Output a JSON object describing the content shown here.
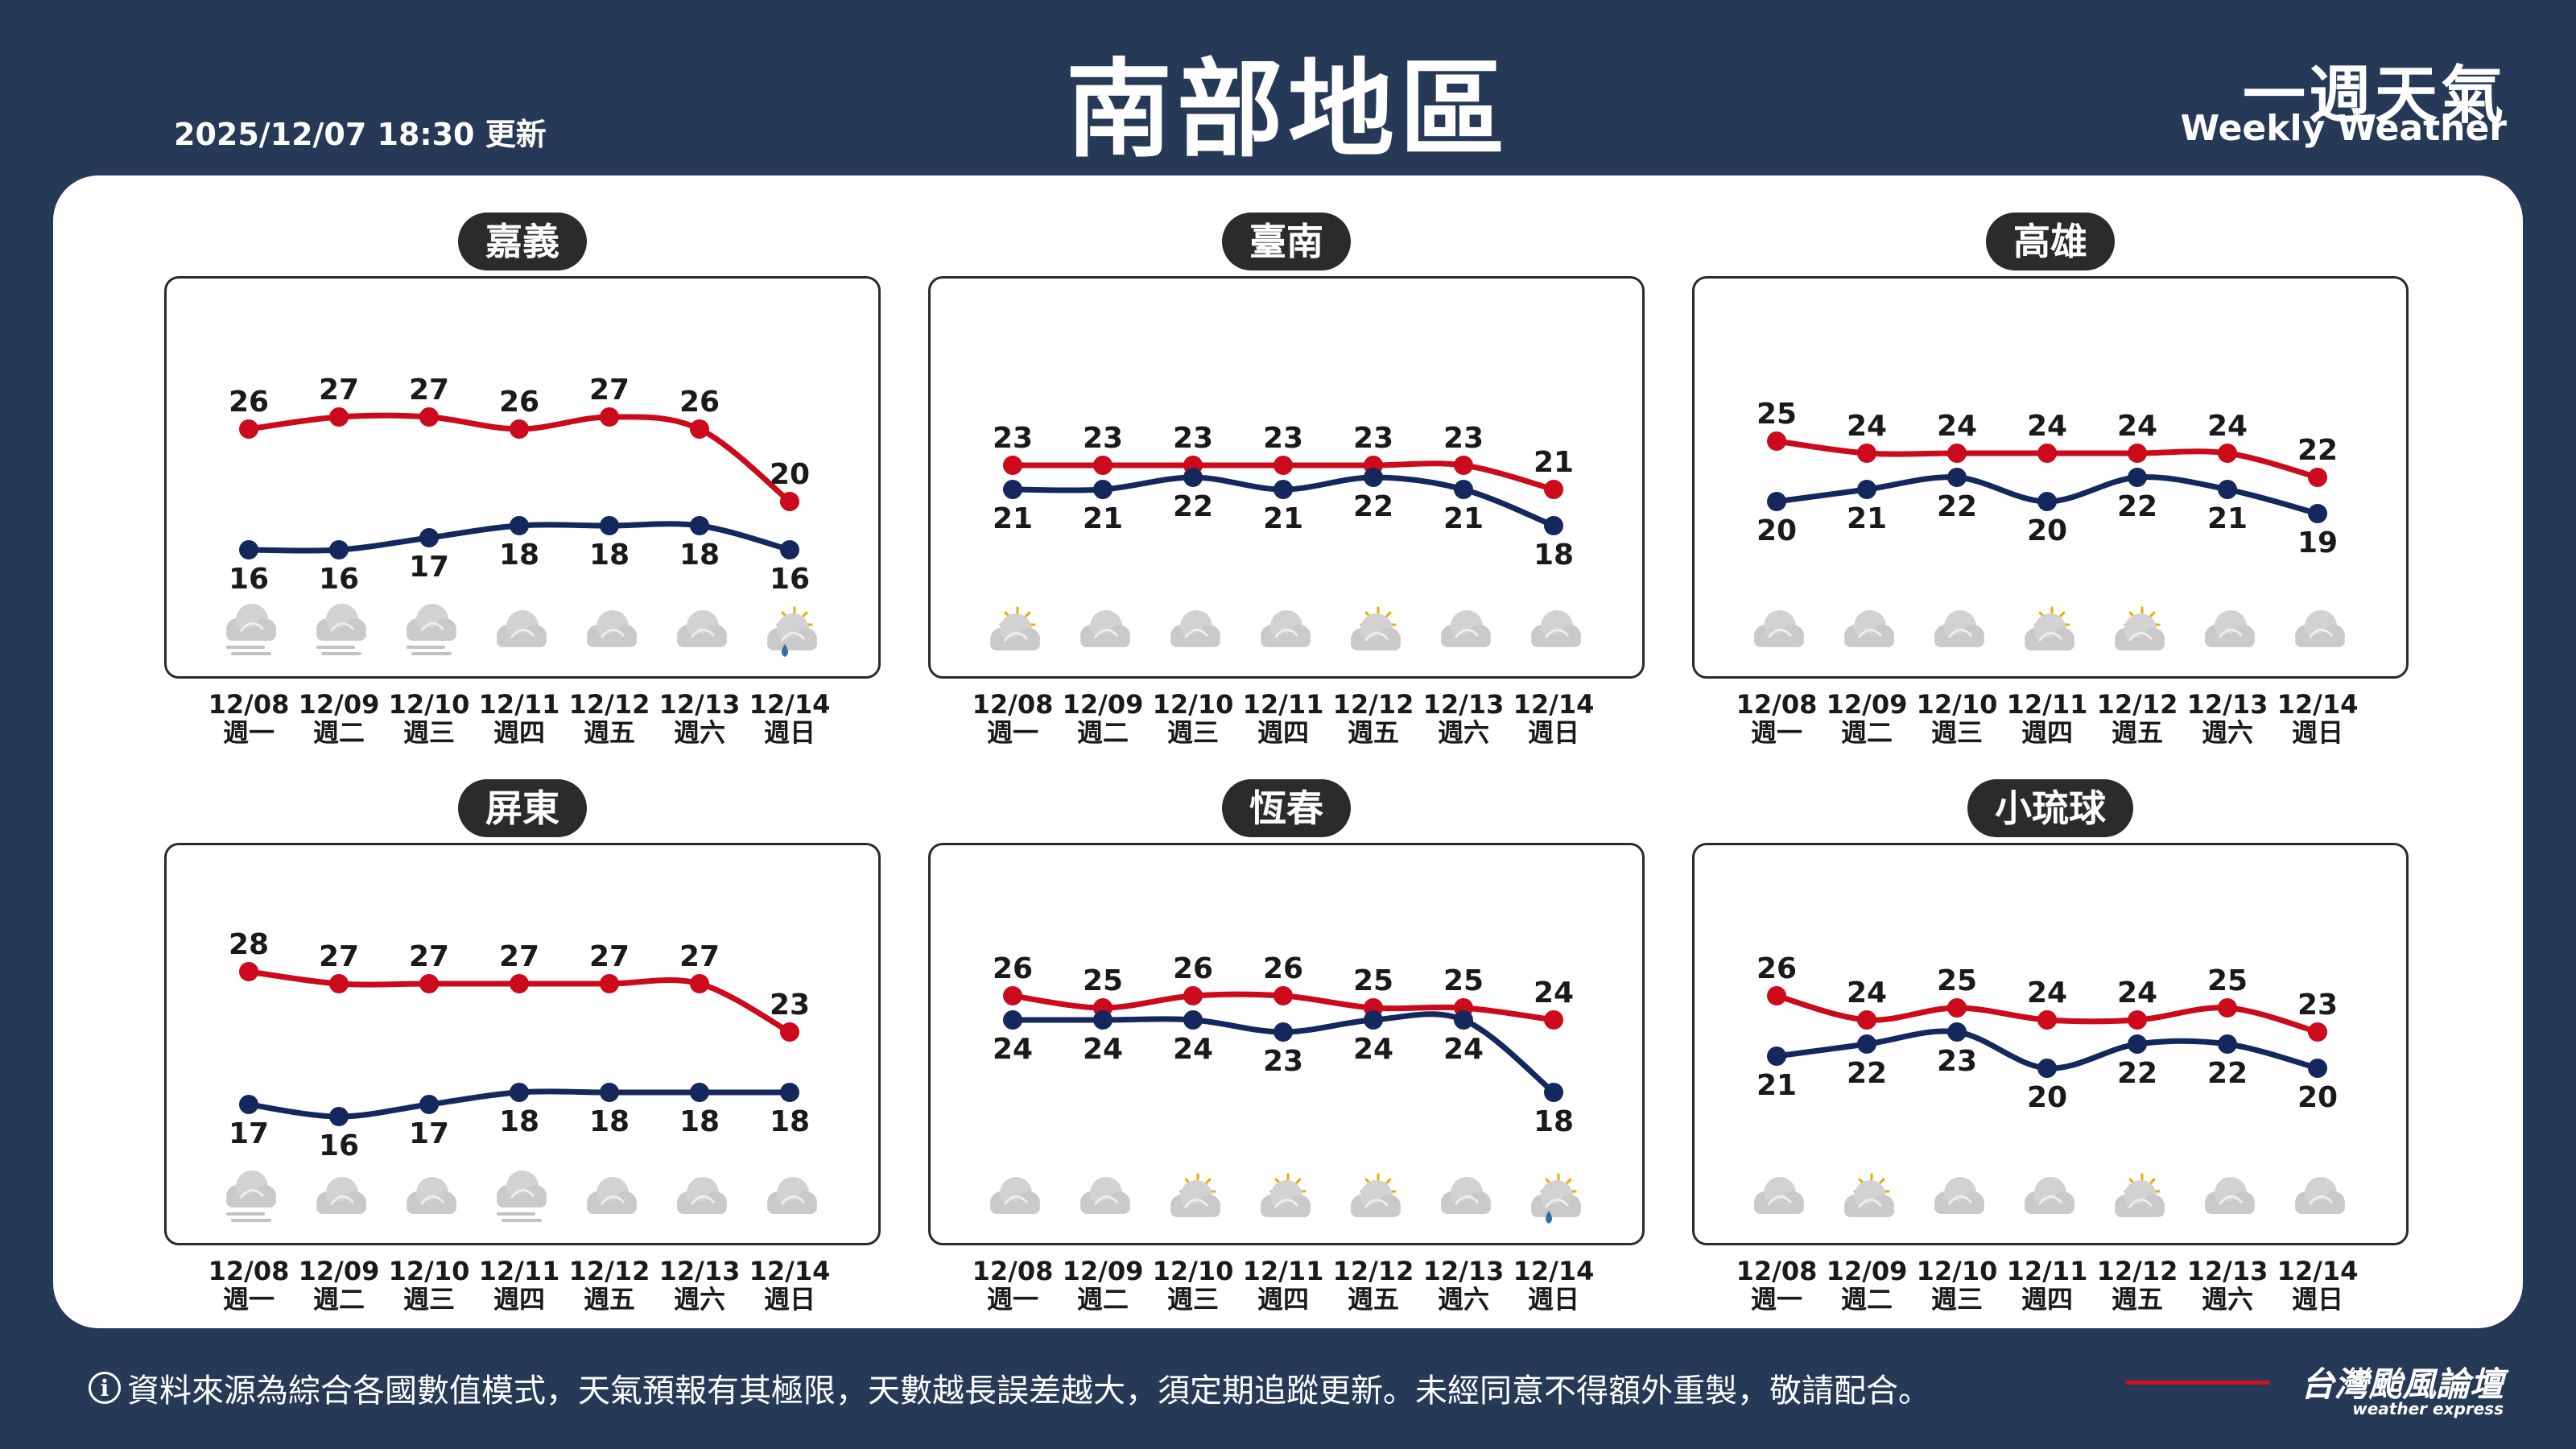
{
  "header": {
    "title": "南部地區",
    "updated": "2025/12/07 18:30 更新",
    "brand_zh": "一週天氣",
    "brand_en": "Weekly Weather"
  },
  "colors": {
    "high": "#cc0a1b",
    "low": "#15285e",
    "background": "#263a58"
  },
  "footer": {
    "notice": "資料來源為綜合各國數值模式，天氣預報有其極限，天數越長誤差越大，須定期追蹤更新。未經同意不得額外重製，敬請配合。",
    "logo": "台灣颱風論壇",
    "logo_sub": "weather express"
  },
  "chart_data": [
    {
      "type": "line",
      "title": "嘉義",
      "dates": [
        "12/08",
        "12/09",
        "12/10",
        "12/11",
        "12/12",
        "12/13",
        "12/14"
      ],
      "weekdays": [
        "週一",
        "週二",
        "週三",
        "週四",
        "週五",
        "週六",
        "週日"
      ],
      "series": [
        {
          "values": [
            26,
            27,
            27,
            26,
            27,
            26,
            20
          ],
          "color": "#cc0a1b"
        },
        {
          "values": [
            16,
            16,
            17,
            18,
            18,
            18,
            16
          ],
          "color": "#15285e"
        }
      ],
      "icons": [
        "fog-icon",
        "fog-icon",
        "fog-icon",
        "cloudy-icon",
        "cloudy-icon",
        "cloudy-icon",
        "sun-cloud-rain-icon"
      ]
    },
    {
      "type": "line",
      "title": "臺南",
      "dates": [
        "12/08",
        "12/09",
        "12/10",
        "12/11",
        "12/12",
        "12/13",
        "12/14"
      ],
      "weekdays": [
        "週一",
        "週二",
        "週三",
        "週四",
        "週五",
        "週六",
        "週日"
      ],
      "series": [
        {
          "values": [
            23,
            23,
            23,
            23,
            23,
            23,
            21
          ],
          "color": "#cc0a1b"
        },
        {
          "values": [
            21,
            21,
            22,
            21,
            22,
            21,
            18
          ],
          "color": "#15285e"
        }
      ],
      "icons": [
        "sun-cloud-icon",
        "cloudy-icon",
        "cloudy-icon",
        "cloudy-icon",
        "sun-cloud-icon",
        "cloudy-icon",
        "cloudy-icon"
      ]
    },
    {
      "type": "line",
      "title": "高雄",
      "dates": [
        "12/08",
        "12/09",
        "12/10",
        "12/11",
        "12/12",
        "12/13",
        "12/14"
      ],
      "weekdays": [
        "週一",
        "週二",
        "週三",
        "週四",
        "週五",
        "週六",
        "週日"
      ],
      "series": [
        {
          "values": [
            25,
            24,
            24,
            24,
            24,
            24,
            22
          ],
          "color": "#cc0a1b"
        },
        {
          "values": [
            20,
            21,
            22,
            20,
            22,
            21,
            19
          ],
          "color": "#15285e"
        }
      ],
      "icons": [
        "cloudy-icon",
        "cloudy-icon",
        "cloudy-icon",
        "sun-cloud-icon",
        "sun-cloud-icon",
        "cloudy-icon",
        "cloudy-icon"
      ]
    },
    {
      "type": "line",
      "title": "屏東",
      "dates": [
        "12/08",
        "12/09",
        "12/10",
        "12/11",
        "12/12",
        "12/13",
        "12/14"
      ],
      "weekdays": [
        "週一",
        "週二",
        "週三",
        "週四",
        "週五",
        "週六",
        "週日"
      ],
      "series": [
        {
          "values": [
            28,
            27,
            27,
            27,
            27,
            27,
            23
          ],
          "color": "#cc0a1b"
        },
        {
          "values": [
            17,
            16,
            17,
            18,
            18,
            18,
            18
          ],
          "color": "#15285e"
        }
      ],
      "icons": [
        "fog-icon",
        "cloudy-icon",
        "cloudy-icon",
        "fog-icon",
        "cloudy-icon",
        "cloudy-icon",
        "cloudy-icon"
      ]
    },
    {
      "type": "line",
      "title": "恆春",
      "dates": [
        "12/08",
        "12/09",
        "12/10",
        "12/11",
        "12/12",
        "12/13",
        "12/14"
      ],
      "weekdays": [
        "週一",
        "週二",
        "週三",
        "週四",
        "週五",
        "週六",
        "週日"
      ],
      "series": [
        {
          "values": [
            26,
            25,
            26,
            26,
            25,
            25,
            24
          ],
          "color": "#cc0a1b"
        },
        {
          "values": [
            24,
            24,
            24,
            23,
            24,
            24,
            18
          ],
          "color": "#15285e"
        }
      ],
      "icons": [
        "cloudy-icon",
        "cloudy-icon",
        "sun-cloud-icon",
        "sun-cloud-icon",
        "sun-cloud-icon",
        "cloudy-icon",
        "sun-cloud-rain-icon"
      ]
    },
    {
      "type": "line",
      "title": "小琉球",
      "dates": [
        "12/08",
        "12/09",
        "12/10",
        "12/11",
        "12/12",
        "12/13",
        "12/14"
      ],
      "weekdays": [
        "週一",
        "週二",
        "週三",
        "週四",
        "週五",
        "週六",
        "週日"
      ],
      "series": [
        {
          "values": [
            26,
            24,
            25,
            24,
            24,
            25,
            23
          ],
          "color": "#cc0a1b"
        },
        {
          "values": [
            21,
            22,
            23,
            20,
            22,
            22,
            20
          ],
          "color": "#15285e"
        }
      ],
      "icons": [
        "cloudy-icon",
        "sun-cloud-icon",
        "cloudy-icon",
        "cloudy-icon",
        "sun-cloud-icon",
        "cloudy-icon",
        "cloudy-icon"
      ]
    }
  ]
}
